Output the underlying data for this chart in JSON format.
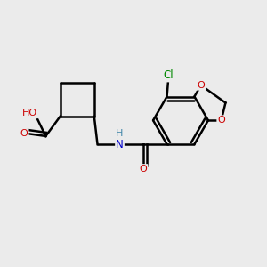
{
  "background_color": "#ebebeb",
  "bond_color": "#000000",
  "atom_colors": {
    "O": "#cc0000",
    "N": "#0000cc",
    "Cl": "#008800",
    "H_amide": "#4488aa",
    "C": "#000000"
  },
  "figsize": [
    3.0,
    3.0
  ],
  "dpi": 100
}
